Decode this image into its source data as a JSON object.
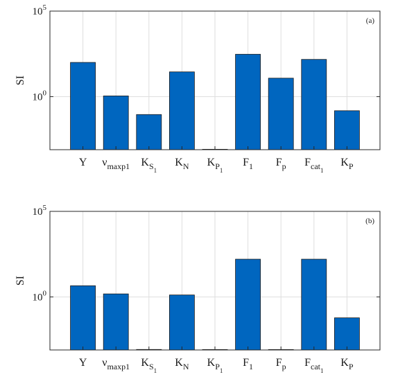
{
  "chart_data": [
    {
      "type": "bar",
      "panel_label": "(a)",
      "ylabel": "SI",
      "yscale": "log",
      "ylim": [
        0.000794,
        100000
      ],
      "yticks": [
        {
          "value": 1,
          "base": "10",
          "exp": "0"
        },
        {
          "value": 100000,
          "base": "10",
          "exp": "5"
        }
      ],
      "grid": true,
      "categories": [
        {
          "key": "Y",
          "main": "Y",
          "sub": "",
          "subsub": ""
        },
        {
          "key": "nu_maxp1",
          "main": "ν",
          "sub": "maxp1",
          "subsub": ""
        },
        {
          "key": "K_S1",
          "main": "K",
          "sub": "S",
          "subsub": "1"
        },
        {
          "key": "K_N",
          "main": "K",
          "sub": "N",
          "subsub": ""
        },
        {
          "key": "K_P1",
          "main": "K",
          "sub": "P",
          "subsub": "1"
        },
        {
          "key": "F_1",
          "main": "F",
          "sub": "1",
          "subsub": ""
        },
        {
          "key": "F_p",
          "main": "F",
          "sub": "p",
          "subsub": ""
        },
        {
          "key": "F_cat1",
          "main": "F",
          "sub": "cat",
          "subsub": "1"
        },
        {
          "key": "K_P",
          "main": "K",
          "sub": "P",
          "subsub": ""
        }
      ],
      "values": [
        100,
        1.1,
        0.09,
        28,
        0.0008,
        300,
        12,
        150,
        0.15
      ],
      "bar_color": "#0066BF"
    },
    {
      "type": "bar",
      "panel_label": "(b)",
      "ylabel": "SI",
      "yscale": "log",
      "ylim": [
        0.000794,
        100000
      ],
      "yticks": [
        {
          "value": 1,
          "base": "10",
          "exp": "0"
        },
        {
          "value": 100000,
          "base": "10",
          "exp": "5"
        }
      ],
      "grid": true,
      "categories": [
        {
          "key": "Y",
          "main": "Y",
          "sub": "",
          "subsub": ""
        },
        {
          "key": "nu_maxp1",
          "main": "ν",
          "sub": "maxp1",
          "subsub": ""
        },
        {
          "key": "K_S1",
          "main": "K",
          "sub": "S",
          "subsub": "1"
        },
        {
          "key": "K_N",
          "main": "K",
          "sub": "N",
          "subsub": ""
        },
        {
          "key": "K_P1",
          "main": "K",
          "sub": "P",
          "subsub": "1"
        },
        {
          "key": "F_1",
          "main": "F",
          "sub": "1",
          "subsub": ""
        },
        {
          "key": "F_p",
          "main": "F",
          "sub": "p",
          "subsub": ""
        },
        {
          "key": "F_cat1",
          "main": "F",
          "sub": "cat",
          "subsub": "1"
        },
        {
          "key": "K_P",
          "main": "K",
          "sub": "P",
          "subsub": ""
        }
      ],
      "values": [
        4.5,
        1.5,
        0.00085,
        1.3,
        0.0008,
        160,
        0.0008,
        160,
        0.06
      ],
      "bar_color": "#0066BF"
    }
  ]
}
